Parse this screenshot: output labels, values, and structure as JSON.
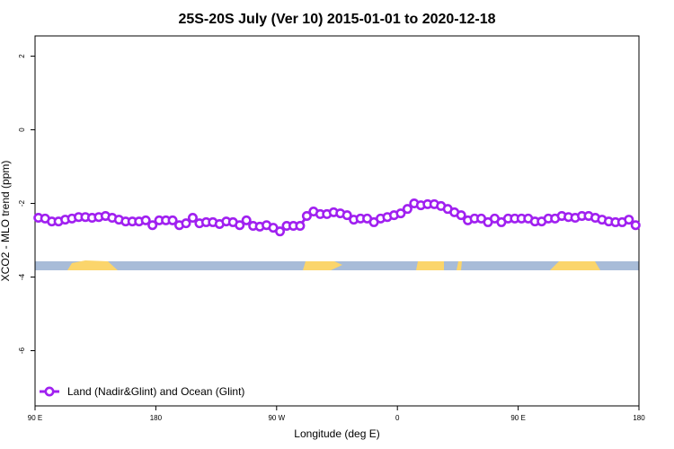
{
  "chart_data": {
    "type": "line",
    "title": "25S-20S July (Ver 10)   2015-01-01 to 2020-12-18",
    "x_label": "Longitude (deg E)",
    "y_label": "XCO2 - MLO trend (ppm)",
    "xlim": [
      90,
      540
    ],
    "ylim": [
      -7.5,
      2.55
    ],
    "xticks": [
      {
        "value": 90,
        "label": "90 E"
      },
      180,
      {
        "value": 270,
        "label": "90 W"
      },
      {
        "value": 360,
        "label": "0"
      },
      {
        "value": 450,
        "label": "90 E"
      },
      {
        "value": 540,
        "label": "180"
      }
    ],
    "yticks": [
      2,
      0,
      -2,
      -4,
      -6
    ],
    "legend": "bottom-left",
    "x": [
      92.5,
      97.5,
      102.5,
      107.5,
      112.5,
      117.5,
      122.5,
      127.5,
      132.5,
      137.5,
      142.5,
      147.5,
      152.5,
      157.5,
      162.5,
      167.5,
      172.5,
      177.5,
      182.5,
      187.5,
      192.5,
      197.5,
      202.5,
      207.5,
      212.5,
      217.5,
      222.5,
      227.5,
      232.5,
      237.5,
      242.5,
      247.5,
      252.5,
      257.5,
      262.5,
      267.5,
      272.5,
      277.5,
      282.5,
      287.5,
      292.5,
      297.5,
      302.5,
      307.5,
      312.5,
      317.5,
      322.5,
      327.5,
      332.5,
      337.5,
      342.5,
      347.5,
      352.5,
      357.5,
      362.5,
      367.5,
      372.5,
      377.5,
      382.5,
      387.5,
      392.5,
      397.5,
      402.5,
      407.5,
      412.5,
      417.5,
      422.5,
      427.5,
      432.5,
      437.5,
      442.5,
      447.5,
      452.5,
      457.5,
      462.5,
      467.5,
      472.5,
      477.5,
      482.5,
      487.5,
      492.5,
      497.5,
      502.5,
      507.5,
      512.5,
      517.5,
      522.5,
      527.5,
      532.5,
      537.5
    ],
    "series": [
      {
        "name": "Land (Nadir&Glint) and Ocean (Glint)",
        "color": "#a020f0",
        "values": [
          -2.39,
          -2.41,
          -2.49,
          -2.49,
          -2.44,
          -2.41,
          -2.37,
          -2.37,
          -2.39,
          -2.37,
          -2.34,
          -2.39,
          -2.44,
          -2.49,
          -2.49,
          -2.49,
          -2.46,
          -2.59,
          -2.46,
          -2.46,
          -2.46,
          -2.59,
          -2.54,
          -2.39,
          -2.54,
          -2.51,
          -2.51,
          -2.56,
          -2.49,
          -2.51,
          -2.59,
          -2.46,
          -2.61,
          -2.63,
          -2.59,
          -2.66,
          -2.76,
          -2.61,
          -2.61,
          -2.61,
          -2.34,
          -2.22,
          -2.29,
          -2.29,
          -2.24,
          -2.27,
          -2.32,
          -2.44,
          -2.41,
          -2.41,
          -2.51,
          -2.41,
          -2.37,
          -2.32,
          -2.27,
          -2.15,
          -2.0,
          -2.05,
          -2.02,
          -2.02,
          -2.07,
          -2.15,
          -2.24,
          -2.32,
          -2.46,
          -2.41,
          -2.41,
          -2.51,
          -2.41,
          -2.51,
          -2.41,
          -2.41,
          -2.41,
          -2.41,
          -2.49,
          -2.49,
          -2.41,
          -2.41,
          -2.34,
          -2.37,
          -2.39,
          -2.34,
          -2.34,
          -2.39,
          -2.44,
          -2.49,
          -2.51,
          -2.51,
          -2.44,
          -2.59
        ]
      }
    ]
  }
}
